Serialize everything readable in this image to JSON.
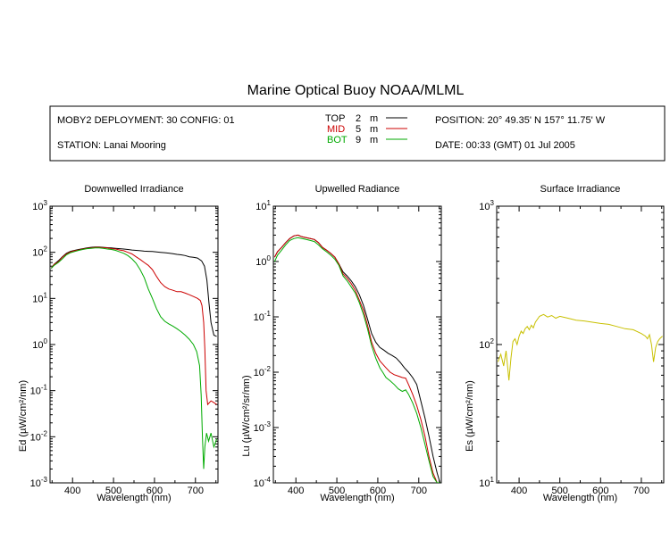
{
  "title": "Marine Optical Buoy NOAA/MLML",
  "info": {
    "deployment": "MOBY2 DEPLOYMENT: 30 CONFIG: 01",
    "station": "STATION: Lanai Mooring",
    "position": "POSITION: 20° 49.35' N   157° 11.75' W",
    "date": "DATE: 00:33 (GMT) 01 Jul 2005"
  },
  "legend": [
    {
      "label": "TOP",
      "depth": "2",
      "unit": "m",
      "color": "#000000"
    },
    {
      "label": "MID",
      "depth": "5",
      "unit": "m",
      "color": "#cc0000"
    },
    {
      "label": "BOT",
      "depth": "9",
      "unit": "m",
      "color": "#00aa00"
    }
  ],
  "chart_data": [
    {
      "type": "line",
      "title": "Downwelled Irradiance",
      "xlabel": "Wavelength (nm)",
      "ylabel": "Ed  (µW/cm²/nm)",
      "yscale": "log",
      "xlim": [
        345,
        755
      ],
      "ylim": [
        0.001,
        1000
      ],
      "xticks": [
        "400",
        "500",
        "600",
        "700"
      ],
      "yticks": [
        "10^-3",
        "10^-2",
        "10^-1",
        "10^0",
        "10^1",
        "10^2",
        "10^3"
      ],
      "series": [
        {
          "name": "TOP",
          "color": "#000000",
          "x": [
            348,
            355,
            365,
            375,
            385,
            395,
            405,
            415,
            425,
            435,
            445,
            455,
            465,
            475,
            485,
            495,
            505,
            515,
            525,
            535,
            545,
            555,
            565,
            575,
            585,
            595,
            605,
            615,
            625,
            635,
            645,
            655,
            665,
            675,
            685,
            695,
            705,
            715,
            722,
            728,
            733,
            738,
            745,
            752
          ],
          "y": [
            45,
            55,
            65,
            80,
            95,
            105,
            110,
            115,
            120,
            125,
            128,
            130,
            130,
            128,
            126,
            124,
            122,
            120,
            118,
            115,
            112,
            110,
            108,
            106,
            105,
            104,
            102,
            100,
            98,
            96,
            93,
            90,
            88,
            85,
            80,
            78,
            75,
            65,
            50,
            25,
            8,
            3,
            1.6,
            1.5
          ]
        },
        {
          "name": "MID",
          "color": "#cc0000",
          "x": [
            348,
            355,
            365,
            375,
            385,
            395,
            405,
            415,
            425,
            435,
            445,
            455,
            465,
            475,
            485,
            495,
            505,
            515,
            525,
            535,
            545,
            555,
            565,
            575,
            585,
            595,
            605,
            615,
            625,
            635,
            645,
            655,
            665,
            675,
            685,
            695,
            705,
            712,
            716,
            720,
            723,
            726,
            730,
            738,
            745,
            752
          ],
          "y": [
            45,
            55,
            62,
            78,
            92,
            102,
            108,
            112,
            118,
            122,
            125,
            128,
            128,
            126,
            124,
            120,
            118,
            112,
            108,
            100,
            92,
            80,
            70,
            60,
            52,
            42,
            30,
            22,
            18,
            16,
            15,
            14,
            14,
            13,
            12,
            11,
            10,
            9,
            7,
            3,
            0.8,
            0.1,
            0.05,
            0.06,
            0.055,
            0.05
          ]
        },
        {
          "name": "BOT",
          "color": "#00aa00",
          "x": [
            348,
            355,
            365,
            375,
            385,
            395,
            405,
            415,
            425,
            435,
            445,
            455,
            465,
            475,
            485,
            495,
            505,
            515,
            525,
            535,
            545,
            555,
            565,
            575,
            585,
            595,
            605,
            615,
            625,
            635,
            645,
            655,
            665,
            675,
            685,
            695,
            703,
            710,
            714,
            717,
            720,
            723,
            727,
            732,
            738,
            745,
            752
          ],
          "y": [
            45,
            52,
            60,
            72,
            88,
            98,
            104,
            110,
            115,
            120,
            122,
            124,
            124,
            122,
            118,
            115,
            110,
            102,
            95,
            85,
            72,
            58,
            42,
            28,
            16,
            10,
            6,
            4,
            3.2,
            2.8,
            2.5,
            2.2,
            1.9,
            1.6,
            1.3,
            1.0,
            0.7,
            0.35,
            0.08,
            0.01,
            0.002,
            0.006,
            0.012,
            0.008,
            0.012,
            0.006,
            0.009
          ]
        }
      ]
    },
    {
      "type": "line",
      "title": "Upwelled Radiance",
      "xlabel": "Wavelength (nm)",
      "ylabel": "Lu  (µW/cm²/sr/nm)",
      "yscale": "log",
      "xlim": [
        345,
        755
      ],
      "ylim": [
        0.0001,
        10
      ],
      "xticks": [
        "400",
        "500",
        "600",
        "700"
      ],
      "yticks": [
        "10^-4",
        "10^-3",
        "10^-2",
        "10^-1",
        "10^0",
        "10^1"
      ],
      "series": [
        {
          "name": "TOP",
          "color": "#000000",
          "x": [
            348,
            355,
            365,
            375,
            385,
            395,
            405,
            415,
            425,
            435,
            445,
            455,
            465,
            475,
            485,
            495,
            505,
            515,
            525,
            535,
            545,
            555,
            565,
            575,
            585,
            595,
            605,
            615,
            625,
            635,
            645,
            655,
            665,
            675,
            685,
            695,
            705,
            715,
            725,
            735,
            745,
            752
          ],
          "y": [
            1.2,
            1.5,
            1.8,
            2.2,
            2.6,
            2.9,
            3.0,
            2.8,
            2.7,
            2.6,
            2.5,
            2.2,
            1.8,
            1.6,
            1.4,
            1.2,
            0.9,
            0.65,
            0.55,
            0.45,
            0.35,
            0.25,
            0.16,
            0.09,
            0.05,
            0.035,
            0.028,
            0.025,
            0.022,
            0.02,
            0.018,
            0.015,
            0.012,
            0.01,
            0.008,
            0.006,
            0.003,
            0.0015,
            0.0007,
            0.0003,
            0.00015,
            0.0001
          ]
        },
        {
          "name": "MID",
          "color": "#cc0000",
          "x": [
            348,
            355,
            365,
            375,
            385,
            395,
            405,
            415,
            425,
            435,
            445,
            455,
            465,
            475,
            485,
            495,
            505,
            515,
            525,
            535,
            545,
            555,
            565,
            575,
            585,
            595,
            605,
            612,
            620,
            630,
            640,
            650,
            660,
            668,
            675,
            685,
            695,
            705,
            715,
            725,
            735,
            745,
            752
          ],
          "y": [
            1.2,
            1.5,
            1.8,
            2.2,
            2.6,
            2.9,
            3.0,
            2.8,
            2.7,
            2.6,
            2.5,
            2.2,
            1.8,
            1.6,
            1.4,
            1.2,
            0.9,
            0.6,
            0.5,
            0.4,
            0.3,
            0.2,
            0.13,
            0.07,
            0.035,
            0.022,
            0.016,
            0.014,
            0.012,
            0.01,
            0.009,
            0.0085,
            0.008,
            0.0078,
            0.006,
            0.004,
            0.0025,
            0.0014,
            0.0007,
            0.0003,
            0.00015,
            0.0001,
            0.0001
          ]
        },
        {
          "name": "BOT",
          "color": "#00aa00",
          "x": [
            348,
            355,
            365,
            375,
            385,
            395,
            405,
            415,
            425,
            435,
            445,
            455,
            465,
            475,
            485,
            495,
            505,
            515,
            525,
            535,
            545,
            555,
            565,
            575,
            585,
            595,
            605,
            612,
            620,
            630,
            640,
            650,
            660,
            668,
            675,
            685,
            695,
            705,
            715,
            725,
            735,
            745,
            752
          ],
          "y": [
            1.0,
            1.3,
            1.6,
            2.0,
            2.4,
            2.6,
            2.7,
            2.6,
            2.5,
            2.4,
            2.3,
            2.0,
            1.7,
            1.5,
            1.3,
            1.1,
            0.85,
            0.55,
            0.45,
            0.35,
            0.27,
            0.18,
            0.11,
            0.06,
            0.03,
            0.018,
            0.012,
            0.01,
            0.008,
            0.007,
            0.006,
            0.005,
            0.0045,
            0.0048,
            0.004,
            0.0028,
            0.0018,
            0.001,
            0.0005,
            0.00025,
            0.00013,
            0.0001,
            0.0001
          ]
        }
      ]
    },
    {
      "type": "line",
      "title": "Surface Irradiance",
      "xlabel": "Wavelength (nm)",
      "ylabel": "Es  (µW/cm²/nm)",
      "yscale": "log",
      "xlim": [
        345,
        755
      ],
      "ylim": [
        10,
        1000
      ],
      "xticks": [
        "400",
        "500",
        "600",
        "700"
      ],
      "yticks": [
        "10^1",
        "10^2",
        "10^3"
      ],
      "series": [
        {
          "name": "Es",
          "color": "#c8c000",
          "x": [
            348,
            355,
            362,
            368,
            375,
            380,
            385,
            390,
            395,
            400,
            405,
            410,
            415,
            420,
            425,
            430,
            435,
            440,
            450,
            460,
            470,
            480,
            490,
            500,
            520,
            540,
            560,
            580,
            600,
            620,
            640,
            660,
            680,
            700,
            710,
            715,
            720,
            725,
            730,
            735,
            740,
            745,
            752
          ],
          "y": [
            75,
            85,
            70,
            90,
            55,
            80,
            105,
            110,
            100,
            115,
            125,
            120,
            130,
            135,
            128,
            138,
            132,
            145,
            160,
            165,
            158,
            162,
            155,
            160,
            155,
            150,
            148,
            145,
            142,
            140,
            135,
            130,
            128,
            120,
            115,
            110,
            118,
            100,
            75,
            95,
            105,
            110,
            115
          ]
        }
      ]
    }
  ]
}
